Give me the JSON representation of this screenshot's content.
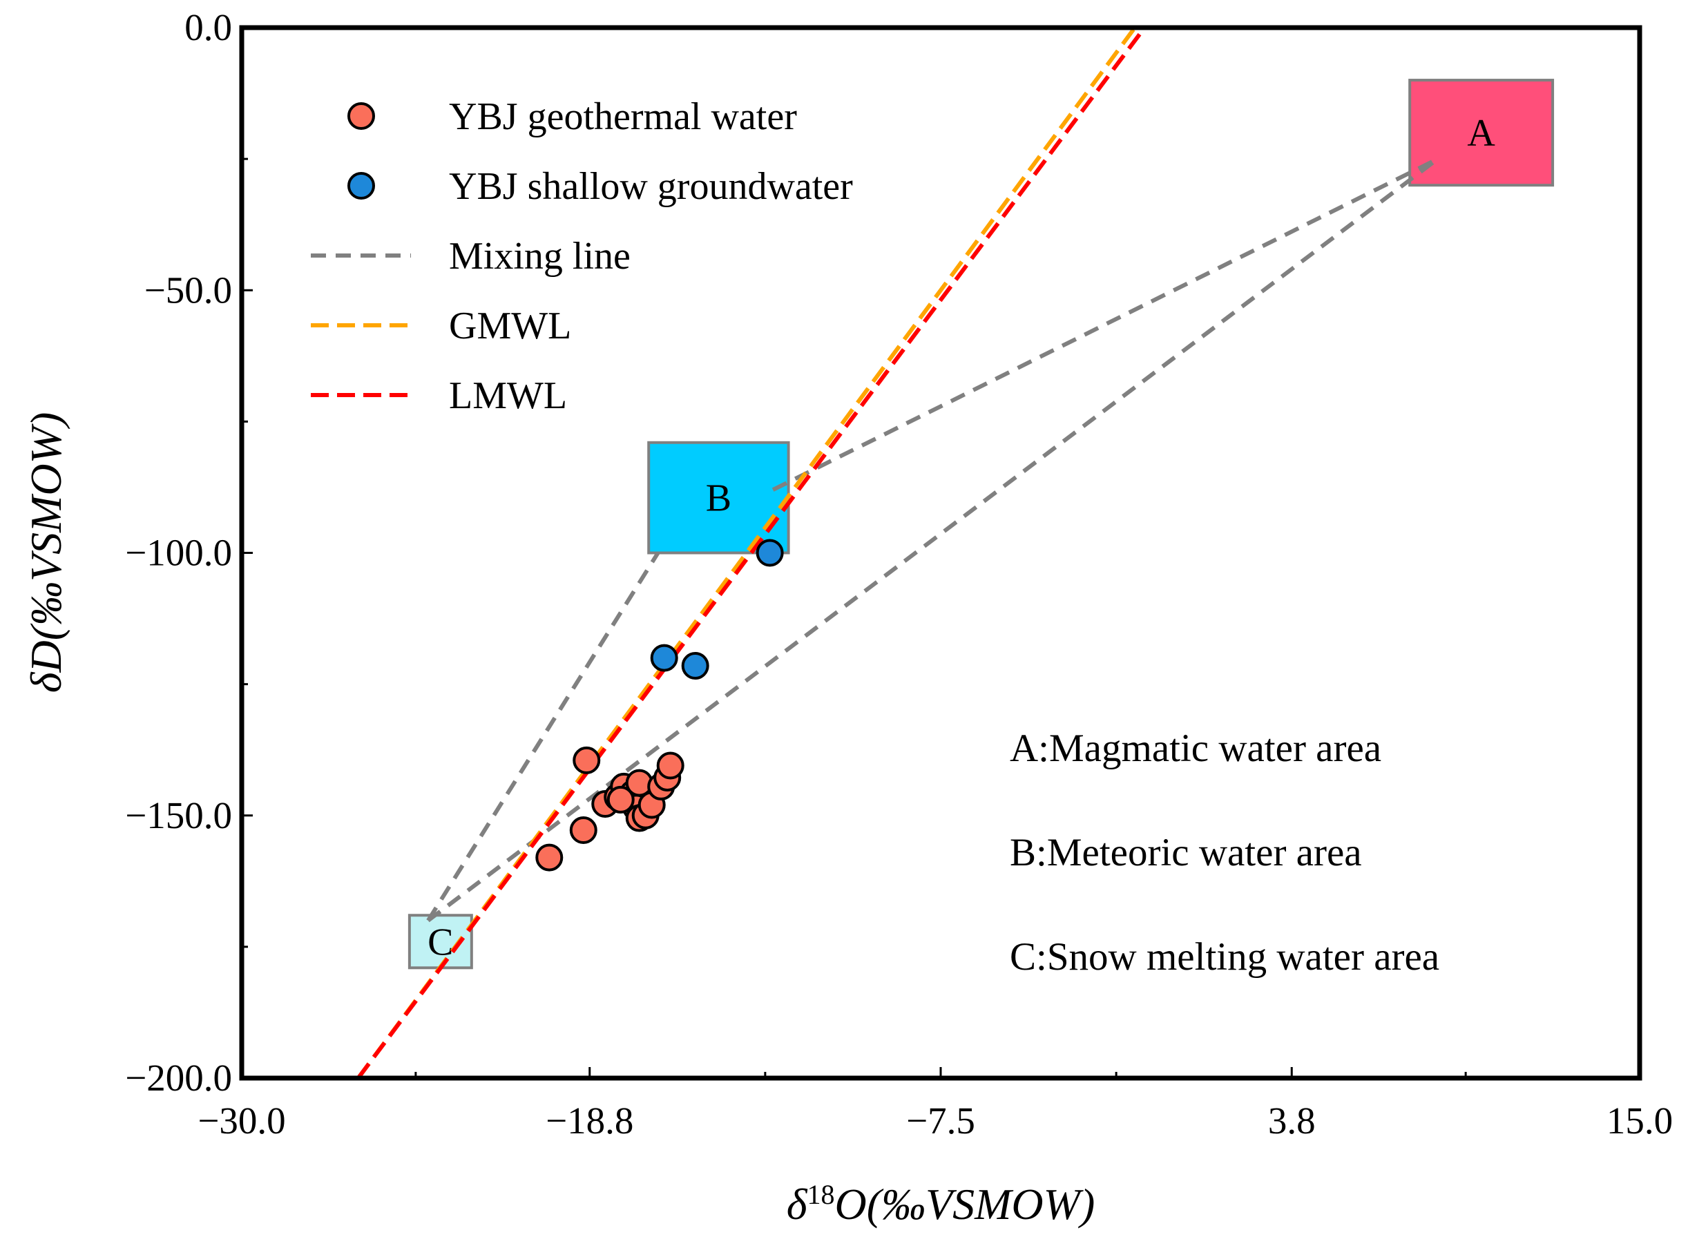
{
  "chart_data": {
    "type": "scatter",
    "xlabel": "δ18O(‰VSMOW)",
    "ylabel": "δD(‰VSMOW)",
    "xlim": [
      -30.0,
      15.0
    ],
    "ylim": [
      -200.0,
      0.0
    ],
    "xticks": [
      {
        "value": -30.0,
        "label": "−30.0"
      },
      {
        "value": -18.8,
        "label": "−18.8"
      },
      {
        "value": -7.5,
        "label": "−7.5"
      },
      {
        "value": 3.8,
        "label": "3.8"
      },
      {
        "value": 15.0,
        "label": "15.0"
      }
    ],
    "yticks": [
      {
        "value": 0.0,
        "label": "0.0"
      },
      {
        "value": -50.0,
        "label": "−50.0"
      },
      {
        "value": -100.0,
        "label": "−100.0"
      },
      {
        "value": -150.0,
        "label": "−150.0"
      },
      {
        "value": -200.0,
        "label": "−200.0"
      }
    ],
    "series": [
      {
        "name": "YBJ geothermal water",
        "kind": "points",
        "color": "#FA6F5A",
        "points": [
          [
            -20.1,
            -158.0
          ],
          [
            -19.0,
            -152.8
          ],
          [
            -18.9,
            -139.5
          ],
          [
            -18.3,
            -147.8
          ],
          [
            -17.9,
            -146.5
          ],
          [
            -17.7,
            -144.5
          ],
          [
            -17.4,
            -145.8
          ],
          [
            -17.2,
            -143.8
          ],
          [
            -17.3,
            -148.5
          ],
          [
            -17.2,
            -150.5
          ],
          [
            -17.0,
            -150.0
          ],
          [
            -16.8,
            -148.0
          ],
          [
            -16.5,
            -144.5
          ],
          [
            -16.3,
            -142.8
          ],
          [
            -16.2,
            -140.5
          ],
          [
            -17.8,
            -147.0
          ]
        ]
      },
      {
        "name": "YBJ shallow groundwater",
        "kind": "points",
        "color": "#1E88D9",
        "points": [
          [
            -13.0,
            -100.0
          ],
          [
            -16.4,
            -120.0
          ],
          [
            -15.4,
            -121.5
          ]
        ]
      },
      {
        "name": "Mixing line",
        "kind": "dashed-lines",
        "color": "#808080",
        "segments": [
          [
            [
              -24.0,
              -170.0
            ],
            [
              -16.6,
              -100.0
            ]
          ],
          [
            [
              -24.0,
              -170.0
            ],
            [
              8.5,
              -25.0
            ]
          ],
          [
            [
              -12.9,
              -88.0
            ],
            [
              8.5,
              -25.0
            ]
          ]
        ]
      },
      {
        "name": "GMWL",
        "kind": "line",
        "color": "#FFA500",
        "slope": 8.0,
        "intercept": 10.0
      },
      {
        "name": "LMWL",
        "kind": "line",
        "color": "#FF0000",
        "slope": 7.9,
        "intercept": 7.4
      }
    ],
    "regions": [
      {
        "label": "A",
        "color": "#FF4F7A",
        "x": [
          7.6,
          12.2
        ],
        "y": [
          -30.0,
          -10.0
        ]
      },
      {
        "label": "B",
        "color": "#00CCFF",
        "x": [
          -16.9,
          -12.4
        ],
        "y": [
          -100.0,
          -79.0
        ]
      },
      {
        "label": "C",
        "color": "#C0F2F4",
        "x": [
          -24.6,
          -22.6
        ],
        "y": [
          -179.0,
          -169.0
        ]
      }
    ],
    "annotations": [
      "A:Magmatic water area",
      "B:Meteoric water area",
      "C:Snow melting water area"
    ],
    "legend_position": "top-left",
    "grid": false
  }
}
